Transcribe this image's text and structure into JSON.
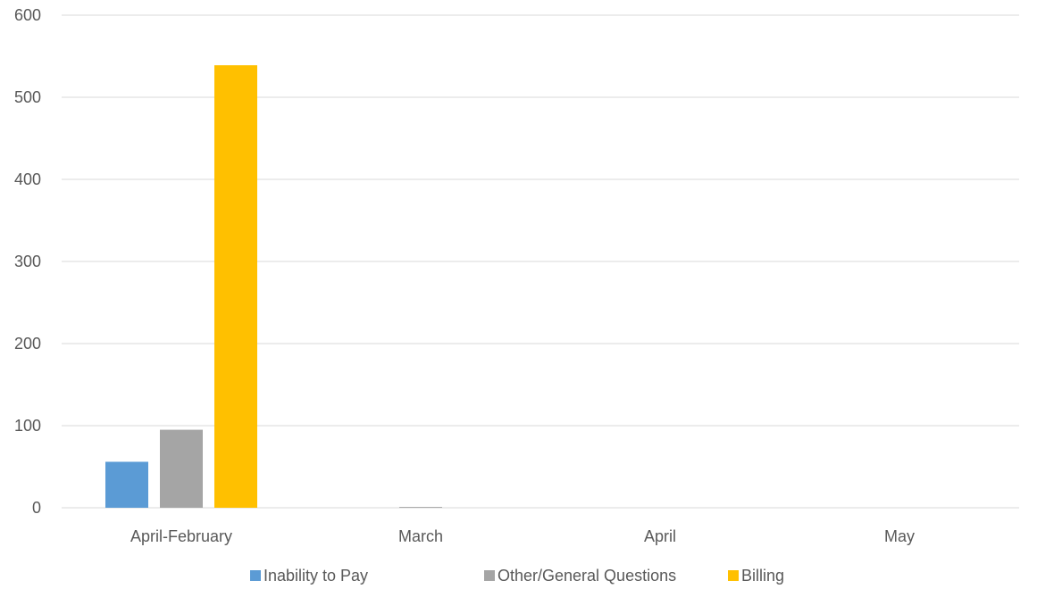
{
  "chart_data": {
    "type": "bar",
    "title": "",
    "xlabel": "",
    "ylabel": "",
    "categories": [
      "April-February",
      "March",
      "April",
      "May"
    ],
    "series": [
      {
        "name": "Inability to Pay",
        "color": "#5b9bd5",
        "values": [
          56,
          0,
          0,
          0
        ]
      },
      {
        "name": "Other/General Questions",
        "color": "#a5a5a5",
        "values": [
          95,
          1,
          0,
          0
        ]
      },
      {
        "name": "Billing",
        "color": "#ffc000",
        "values": [
          539,
          0,
          0,
          0
        ]
      }
    ],
    "ylim": [
      0,
      600
    ],
    "yticks": [
      "0",
      "100",
      "200",
      "300",
      "400",
      "500",
      "600"
    ],
    "grid": true,
    "legend_position": "bottom"
  }
}
